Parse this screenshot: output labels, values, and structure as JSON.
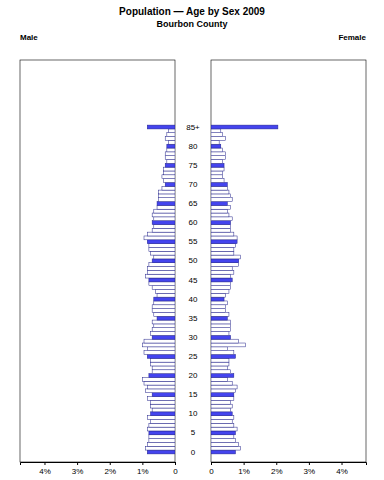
{
  "chart_data": {
    "type": "bar",
    "orientation": "horizontal",
    "title": "Population — Age by Sex 2009",
    "subtitle": "Bourbon County",
    "categories": [
      "0",
      null,
      null,
      null,
      null,
      "5",
      null,
      null,
      null,
      null,
      "10",
      null,
      null,
      null,
      null,
      "15",
      null,
      null,
      null,
      null,
      "20",
      null,
      null,
      null,
      null,
      "25",
      null,
      null,
      null,
      null,
      "30",
      null,
      null,
      null,
      null,
      "35",
      null,
      null,
      null,
      null,
      "40",
      null,
      null,
      null,
      null,
      "45",
      null,
      null,
      null,
      null,
      "50",
      null,
      null,
      null,
      null,
      "55",
      null,
      null,
      null,
      null,
      "60",
      null,
      null,
      null,
      null,
      "65",
      null,
      null,
      null,
      null,
      "70",
      null,
      null,
      null,
      null,
      "75",
      null,
      null,
      null,
      null,
      "80",
      null,
      null,
      null,
      null,
      "85+"
    ],
    "series": [
      {
        "name": "Male",
        "values": [
          0.85,
          0.9,
          0.85,
          0.8,
          0.8,
          0.8,
          0.85,
          0.8,
          0.75,
          0.85,
          0.75,
          0.7,
          0.75,
          0.75,
          0.85,
          0.7,
          0.9,
          0.85,
          0.95,
          1.0,
          0.8,
          0.7,
          0.7,
          0.75,
          0.75,
          0.85,
          0.95,
          0.85,
          1.0,
          0.95,
          0.7,
          0.75,
          0.7,
          0.65,
          0.7,
          0.55,
          0.65,
          0.7,
          0.7,
          0.65,
          0.65,
          0.55,
          0.6,
          0.7,
          0.8,
          0.8,
          0.9,
          0.85,
          0.85,
          0.8,
          0.7,
          0.65,
          0.75,
          0.8,
          0.8,
          0.85,
          0.95,
          0.85,
          0.7,
          0.65,
          0.7,
          0.65,
          0.7,
          0.65,
          0.55,
          0.55,
          0.5,
          0.5,
          0.5,
          0.4,
          0.3,
          0.35,
          0.4,
          0.35,
          0.35,
          0.3,
          0.25,
          0.3,
          0.3,
          0.25,
          0.25,
          0.2,
          0.3,
          0.25,
          0.2,
          0.85
        ]
      },
      {
        "name": "Female",
        "values": [
          0.75,
          0.9,
          0.85,
          0.75,
          0.7,
          0.75,
          0.8,
          0.7,
          0.65,
          0.7,
          0.65,
          0.6,
          0.65,
          0.6,
          0.7,
          0.7,
          0.75,
          0.8,
          0.65,
          0.5,
          0.7,
          0.6,
          0.5,
          0.55,
          0.55,
          0.75,
          0.7,
          0.5,
          1.05,
          0.85,
          0.6,
          0.55,
          0.6,
          0.6,
          0.6,
          0.5,
          0.55,
          0.45,
          0.45,
          0.5,
          0.4,
          0.45,
          0.55,
          0.6,
          0.6,
          0.65,
          0.6,
          0.7,
          0.65,
          0.85,
          0.85,
          0.9,
          0.7,
          0.7,
          0.75,
          0.8,
          0.8,
          0.7,
          0.6,
          0.6,
          0.6,
          0.65,
          0.55,
          0.5,
          0.6,
          0.5,
          0.65,
          0.6,
          0.55,
          0.5,
          0.5,
          0.4,
          0.35,
          0.35,
          0.4,
          0.4,
          0.35,
          0.45,
          0.45,
          0.35,
          0.3,
          0.25,
          0.45,
          0.35,
          0.3,
          2.05
        ]
      }
    ],
    "colors": [
      "#4444ee",
      "#ffffff",
      "#ffffff",
      "#ffffff",
      "#ffffff",
      "#4444ee",
      "#ffffff",
      "#ffffff",
      "#ffffff",
      "#ffffff",
      "#4444ee",
      "#ffffff",
      "#ffffff",
      "#ffffff",
      "#ffffff",
      "#4444ee",
      "#ffffff",
      "#ffffff",
      "#ffffff",
      "#ffffff",
      "#4444ee",
      "#ffffff",
      "#ffffff",
      "#ffffff",
      "#ffffff",
      "#4444ee",
      "#ffffff",
      "#ffffff",
      "#ffffff",
      "#ffffff",
      "#4444ee",
      "#ffffff",
      "#ffffff",
      "#ffffff",
      "#ffffff",
      "#4444ee",
      "#ffffff",
      "#ffffff",
      "#ffffff",
      "#ffffff",
      "#4444ee",
      "#ffffff",
      "#ffffff",
      "#ffffff",
      "#ffffff",
      "#4444ee",
      "#ffffff",
      "#ffffff",
      "#ffffff",
      "#ffffff",
      "#4444ee",
      "#ffffff",
      "#ffffff",
      "#ffffff",
      "#ffffff",
      "#4444ee",
      "#ffffff",
      "#ffffff",
      "#ffffff",
      "#ffffff",
      "#4444ee",
      "#ffffff",
      "#ffffff",
      "#ffffff",
      "#ffffff",
      "#4444ee",
      "#ffffff",
      "#ffffff",
      "#ffffff",
      "#ffffff",
      "#4444ee",
      "#ffffff",
      "#ffffff",
      "#ffffff",
      "#ffffff",
      "#4444ee",
      "#ffffff",
      "#ffffff",
      "#ffffff",
      "#ffffff",
      "#4444ee",
      "#ffffff",
      "#ffffff",
      "#ffffff",
      "#ffffff",
      "#4444ee"
    ],
    "xlim": [
      0,
      4.75
    ],
    "xticks": [
      0,
      {
        "value": 1,
        "label": "1%"
      },
      {
        "value": 2,
        "label": "2%"
      },
      {
        "value": 3,
        "label": "3%"
      },
      {
        "value": 4,
        "label": "4%"
      }
    ]
  }
}
